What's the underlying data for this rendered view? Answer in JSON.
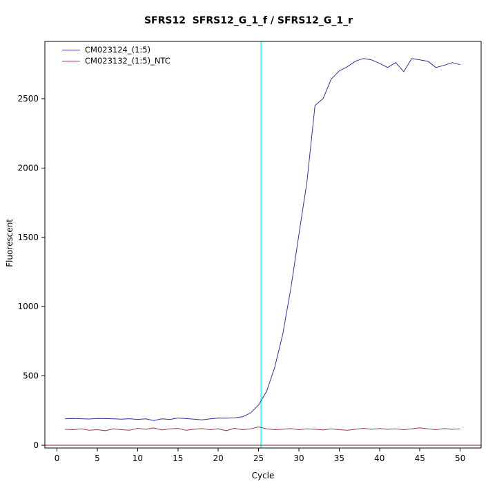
{
  "chart_data": {
    "type": "line",
    "title": "SFRS12  SFRS12_G_1_f / SFRS12_G_1_r",
    "xlabel": "Cycle",
    "ylabel": "Fluorescent",
    "x_ticks": [
      0,
      5,
      10,
      15,
      20,
      25,
      30,
      35,
      40,
      45,
      50
    ],
    "y_ticks": [
      0,
      500,
      1000,
      1500,
      2000,
      2500
    ],
    "xlim": [
      -1.5,
      52.6
    ],
    "ylim": [
      -20,
      2913
    ],
    "grid": false,
    "legend_position": "top-left",
    "threshold_line": {
      "orientation": "vertical",
      "x": 25.3,
      "color": "#00ffff"
    },
    "baseline": {
      "y": 0,
      "color": "#7f1f1f"
    },
    "x": [
      1,
      2,
      3,
      4,
      5,
      6,
      7,
      8,
      9,
      10,
      11,
      12,
      13,
      14,
      15,
      16,
      17,
      18,
      19,
      20,
      21,
      22,
      23,
      24,
      25,
      26,
      27,
      28,
      29,
      30,
      31,
      32,
      33,
      34,
      35,
      36,
      37,
      38,
      39,
      40,
      41,
      42,
      43,
      44,
      45,
      46,
      47,
      48,
      49,
      50
    ],
    "series": [
      {
        "name": "CM023124_(1:5)",
        "color": "#30309c",
        "values": [
          190,
          193,
          191,
          189,
          193,
          192,
          190,
          188,
          191,
          186,
          190,
          178,
          190,
          186,
          196,
          192,
          188,
          183,
          190,
          196,
          195,
          197,
          205,
          232,
          290,
          390,
          560,
          800,
          1130,
          1520,
          1900,
          2450,
          2500,
          2640,
          2700,
          2730,
          2770,
          2790,
          2780,
          2755,
          2725,
          2760,
          2695,
          2790,
          2780,
          2770,
          2725,
          2740,
          2760,
          2745
        ]
      },
      {
        "name": "CM023132_(1:5)_NTC",
        "color": "#8f3f3f",
        "values": [
          115,
          112,
          118,
          108,
          112,
          105,
          118,
          112,
          108,
          122,
          115,
          125,
          110,
          118,
          122,
          108,
          115,
          120,
          112,
          118,
          105,
          122,
          112,
          118,
          132,
          118,
          112,
          115,
          120,
          112,
          118,
          115,
          110,
          118,
          112,
          108,
          115,
          122,
          115,
          120,
          115,
          118,
          112,
          118,
          125,
          118,
          112,
          120,
          115,
          118
        ]
      }
    ]
  }
}
